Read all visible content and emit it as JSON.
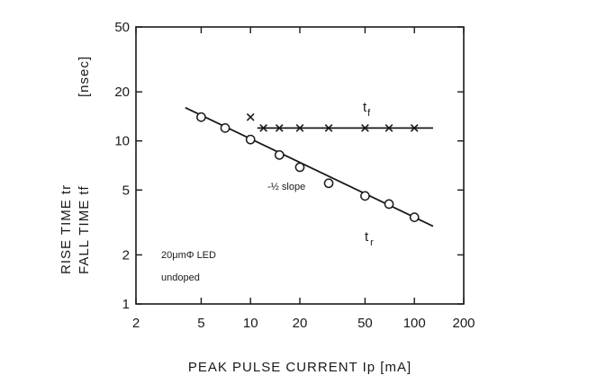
{
  "chart_data": {
    "type": "scatter",
    "title": "",
    "xlabel": "PEAK  PULSE  CURRENT  Ip  [mA]",
    "ylabel_lines": [
      "RISE  TIME  tr",
      "FALL  TIME  tf"
    ],
    "ylabel_unit": "[nsec]",
    "x_scale": "log",
    "y_scale": "log",
    "xlim": [
      2,
      200
    ],
    "ylim": [
      1,
      50
    ],
    "x_ticks": [
      2,
      5,
      10,
      20,
      50,
      100,
      200
    ],
    "y_ticks": [
      1,
      2,
      5,
      10,
      20,
      50
    ],
    "grid": false,
    "series": [
      {
        "name": "tr",
        "marker": "circle",
        "x": [
          5,
          7,
          10,
          15,
          20,
          30,
          50,
          70,
          100
        ],
        "y": [
          14,
          12,
          10.2,
          8.2,
          6.9,
          5.5,
          4.6,
          4.1,
          3.4
        ]
      },
      {
        "name": "tf",
        "marker": "x",
        "x": [
          10,
          12,
          15,
          20,
          30,
          50,
          70,
          100
        ],
        "y": [
          14,
          12,
          12,
          12,
          12,
          12,
          12,
          12
        ]
      }
    ],
    "fit_lines": [
      {
        "series": "tr",
        "x": [
          4,
          130
        ],
        "y": [
          16,
          3.0
        ]
      },
      {
        "series": "tf",
        "x": [
          11,
          130
        ],
        "y": [
          12,
          12
        ]
      }
    ],
    "annotations": {
      "slope": "-½ slope",
      "device": "20μmΦ LED",
      "doping": "undoped"
    }
  }
}
